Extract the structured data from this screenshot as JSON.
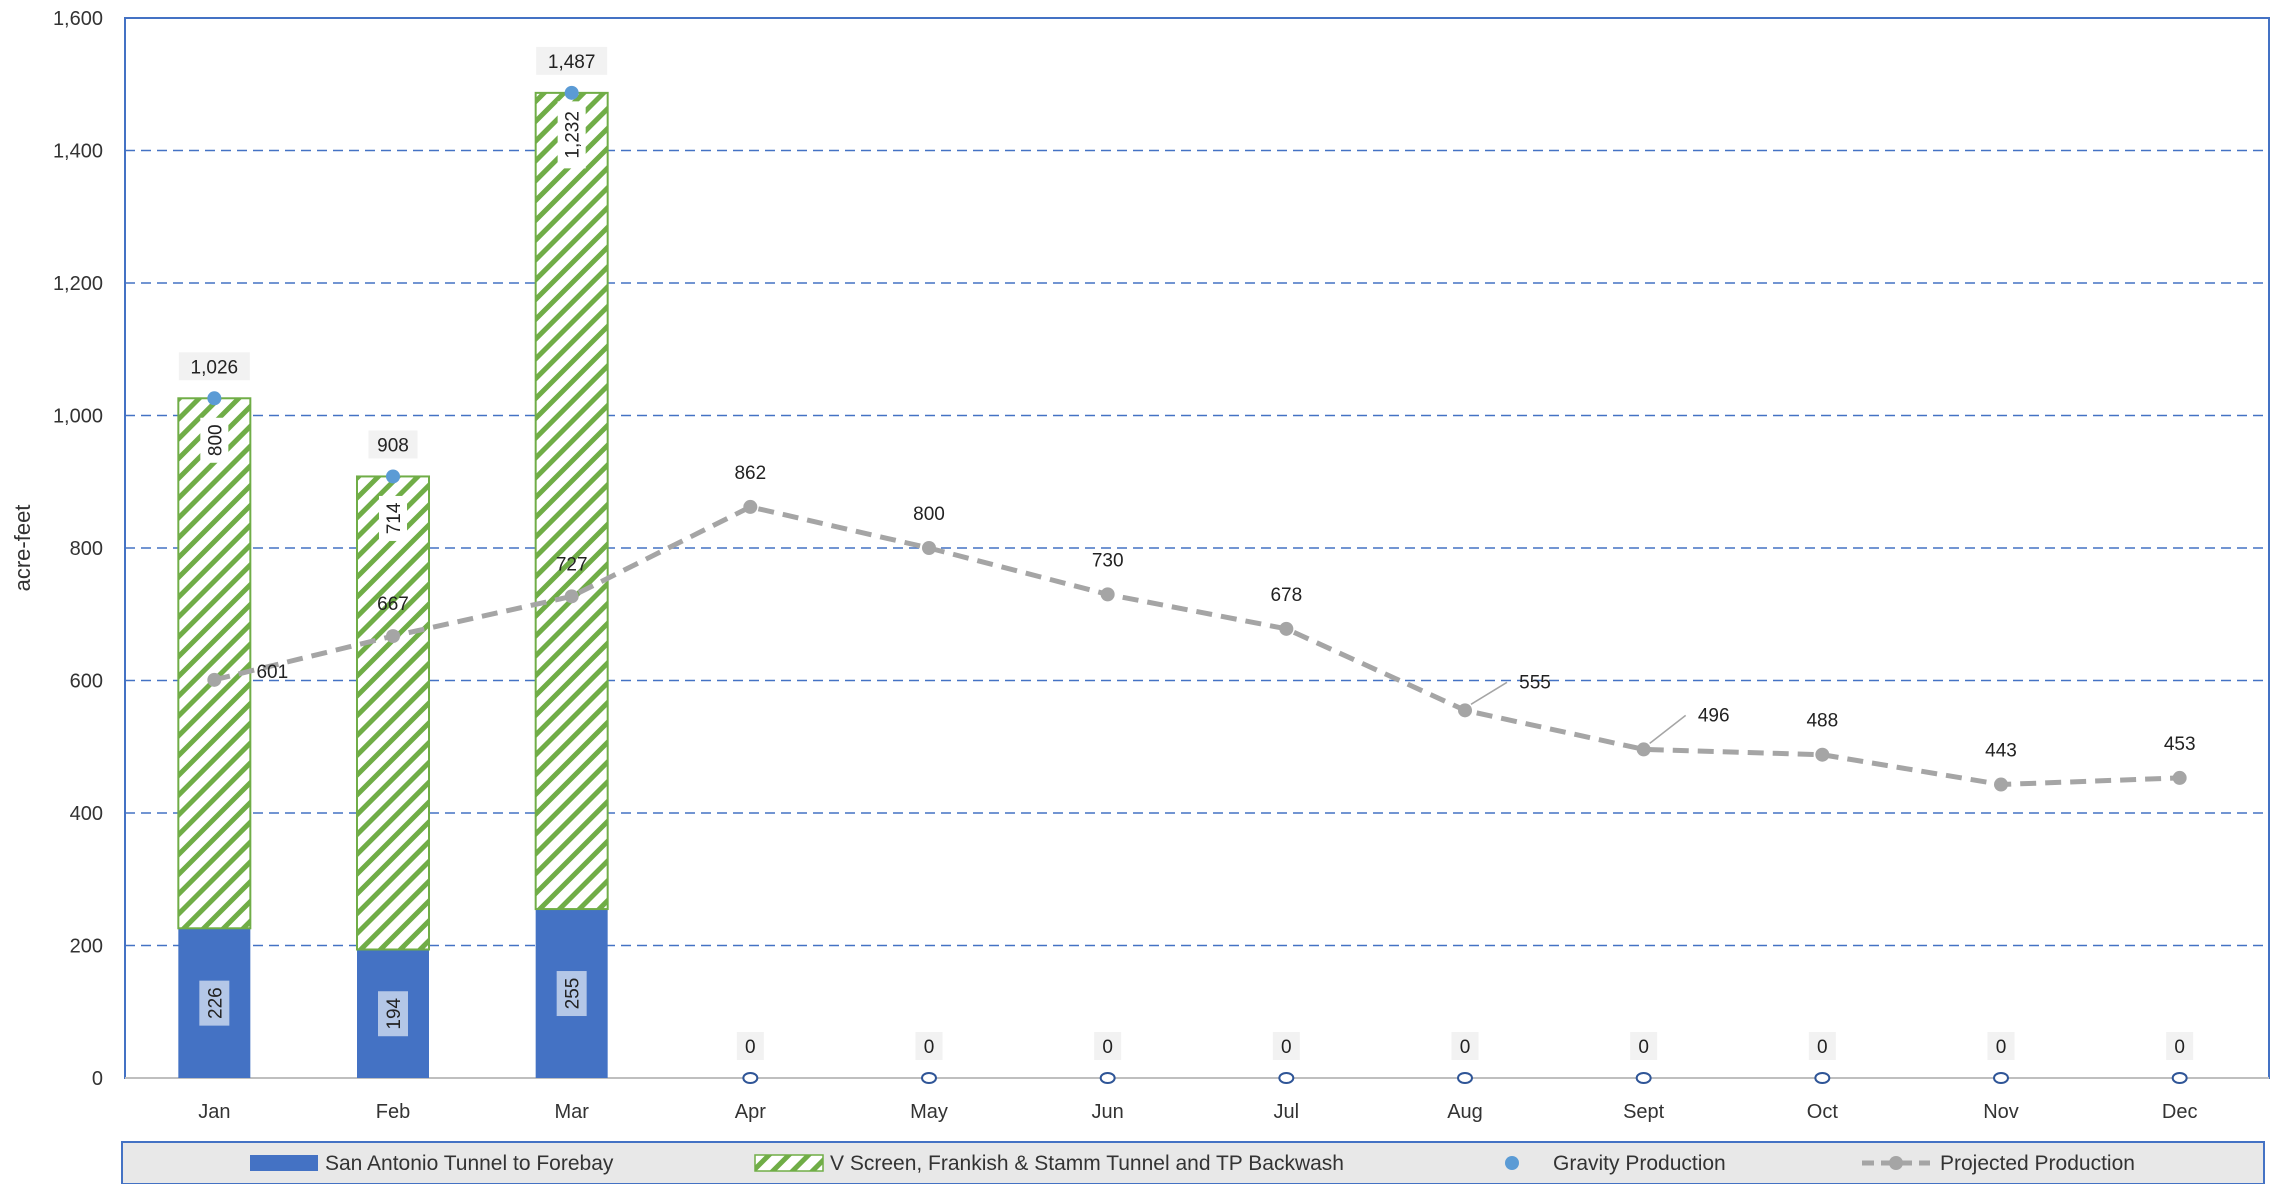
{
  "chart_data": {
    "type": "bar",
    "categories": [
      "Jan",
      "Feb",
      "Mar",
      "Apr",
      "May",
      "Jun",
      "Jul",
      "Aug",
      "Sept",
      "Oct",
      "Nov",
      "Dec"
    ],
    "ylabel": "acre-feet",
    "ylim": [
      0,
      1600
    ],
    "yticks": [
      0,
      200,
      400,
      600,
      800,
      1000,
      1200,
      1400,
      1600
    ],
    "ytick_labels": [
      "0",
      "200",
      "400",
      "600",
      "800",
      "1,000",
      "1,200",
      "1,400",
      "1,600"
    ],
    "grid": true,
    "legend_position": "bottom",
    "series": [
      {
        "name": "San Antonio Tunnel to Forebay",
        "kind": "stacked-bar",
        "color": "#4472C4",
        "values": [
          226,
          194,
          255,
          0,
          0,
          0,
          0,
          0,
          0,
          0,
          0,
          0
        ],
        "labels": [
          "226",
          "194",
          "255",
          "",
          "",
          "",
          "",
          "",
          "",
          "",
          "",
          ""
        ]
      },
      {
        "name": "V Screen, Frankish & Stamm Tunnel and TP Backwash",
        "kind": "stacked-bar-hatched",
        "color": "#70AD47",
        "values": [
          800,
          714,
          1232,
          0,
          0,
          0,
          0,
          0,
          0,
          0,
          0,
          0
        ],
        "labels": [
          "800",
          "714",
          "1,232",
          "",
          "",
          "",
          "",
          "",
          "",
          "",
          "",
          ""
        ]
      },
      {
        "name": "Gravity Production",
        "kind": "marker",
        "color": "#5B9BD5",
        "values": [
          1026,
          908,
          1487,
          0,
          0,
          0,
          0,
          0,
          0,
          0,
          0,
          0
        ],
        "labels": [
          "1,026",
          "908",
          "1,487",
          "0",
          "0",
          "0",
          "0",
          "0",
          "0",
          "0",
          "0",
          "0"
        ]
      },
      {
        "name": "Projected Production",
        "kind": "dashed-line",
        "color": "#A5A5A5",
        "values": [
          601,
          667,
          727,
          862,
          800,
          730,
          678,
          555,
          496,
          488,
          443,
          453
        ],
        "labels": [
          "601",
          "667",
          "727",
          "862",
          "800",
          "730",
          "678",
          "555",
          "496",
          "488",
          "443",
          "453"
        ]
      }
    ]
  }
}
